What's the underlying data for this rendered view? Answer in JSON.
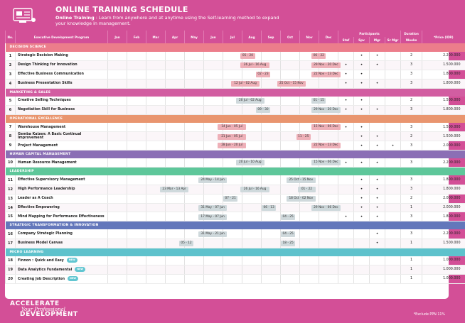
{
  "header": {
    "title": "ONLINE TRAINING  SCHEDULE",
    "subtitle_bold": "Online Training",
    "subtitle_text": " : Learn from anywhere and at anytime using the Self-learning method to expand your knowledge in management."
  },
  "columns": {
    "no": "No.",
    "program": "Executive Development Program",
    "months": [
      "Jan",
      "Feb",
      "Mar",
      "Apr",
      "May",
      "Jun",
      "Jul",
      "Aug",
      "Sep",
      "Oct",
      "Nov",
      "Dec"
    ],
    "participants": "Participants",
    "participant_types": [
      "Staf",
      "Spv",
      "Mgr",
      "Sr Mgr"
    ],
    "duration": "Duration",
    "weeks": "Weeks",
    "price": "*Price (IDR)"
  },
  "colors": {
    "accent": "#d34f97",
    "bar_pink": "#eeb0b8",
    "bar_gray": "#cfd9dc"
  },
  "sections": [
    {
      "title": "DECISION SCIENCE",
      "color": "#ec7d8b",
      "rows": [
        {
          "no": "1",
          "program": "Strategic Decision Making",
          "bars": [
            {
              "m": 6.9,
              "w": 0.75,
              "c": "pink",
              "t": "05 - 20"
            },
            {
              "m": 10.6,
              "w": 0.75,
              "c": "pink",
              "t": "06 - 22"
            }
          ],
          "p": [
            "",
            "•",
            "•",
            ""
          ],
          "weeks": "2",
          "price": "2.200.000"
        },
        {
          "no": "2",
          "program": "Design Thinking for Innovation",
          "bars": [
            {
              "m": 6.9,
              "w": 1.5,
              "c": "pink",
              "t": "26 Jul - 16 Aug"
            },
            {
              "m": 10.6,
              "w": 1.5,
              "c": "pink",
              "t": "29 Nov - 20 Dec"
            }
          ],
          "p": [
            "•",
            "•",
            "•",
            ""
          ],
          "weeks": "3",
          "price": "1.500.000"
        },
        {
          "no": "3",
          "program": "Effective Business Communication",
          "bars": [
            {
              "m": 7.7,
              "w": 0.75,
              "c": "pink",
              "t": "02 - 23"
            },
            {
              "m": 10.6,
              "w": 1.5,
              "c": "pink",
              "t": "22 Nov - 13 Dec"
            }
          ],
          "p": [
            "•",
            "•",
            "",
            ""
          ],
          "weeks": "3",
          "price": "1.800.000"
        },
        {
          "no": "4",
          "program": "Business Presentation Skills",
          "bars": [
            {
              "m": 6.4,
              "w": 1.5,
              "c": "pink",
              "t": "12 Jul - 02 Aug"
            },
            {
              "m": 8.8,
              "w": 1.5,
              "c": "pink",
              "t": "25 Oct - 15 Nov"
            }
          ],
          "p": [
            "•",
            "•",
            "•",
            ""
          ],
          "weeks": "3",
          "price": "1.800.000"
        }
      ]
    },
    {
      "title": "MARKETING & SALES",
      "color": "#d25da1",
      "rows": [
        {
          "no": "5",
          "program": "Creative Selling Techniques",
          "bars": [
            {
              "m": 6.65,
              "w": 1.5,
              "c": "gray",
              "t": "20 Jul - 02 Aug"
            },
            {
              "m": 10.6,
              "w": 0.75,
              "c": "gray",
              "t": "01 - 15"
            }
          ],
          "p": [
            "•",
            "•",
            "",
            ""
          ],
          "weeks": "2",
          "price": "1.500.000"
        },
        {
          "no": "6",
          "program": "Negotiation Skill for Business",
          "bars": [
            {
              "m": 7.7,
              "w": 0.75,
              "c": "gray",
              "t": "09 - 30"
            },
            {
              "m": 10.6,
              "w": 1.5,
              "c": "gray",
              "t": "29 Nov - 20 Dec"
            }
          ],
          "p": [
            "•",
            "•",
            "•",
            ""
          ],
          "weeks": "3",
          "price": "1.800.000"
        }
      ]
    },
    {
      "title": "OPERATIONAL EXCELLENCE",
      "color": "#e9956f",
      "rows": [
        {
          "no": "7",
          "program": "Warehouse Management",
          "bars": [
            {
              "m": 5.7,
              "w": 1.5,
              "c": "pink",
              "t": "14 Jun - 05 Jul"
            },
            {
              "m": 10.6,
              "w": 1.5,
              "c": "pink",
              "t": "15 Nov - 06 Dec"
            }
          ],
          "p": [
            "•",
            "•",
            "",
            ""
          ],
          "weeks": "3",
          "price": "1.500.000"
        },
        {
          "no": "8",
          "program": "Gemba Kaizen: A Basic Continual Improvement",
          "bars": [
            {
              "m": 5.7,
              "w": 1.5,
              "c": "pink",
              "t": "21 Jun - 05 Jul"
            },
            {
              "m": 9.8,
              "w": 0.75,
              "c": "pink",
              "t": "11 - 25"
            }
          ],
          "p": [
            "",
            "•",
            "•",
            ""
          ],
          "weeks": "2",
          "price": "1.500.000"
        },
        {
          "no": "9",
          "program": "Project Management",
          "bars": [
            {
              "m": 5.7,
              "w": 1.5,
              "c": "pink",
              "t": "28 Jun - 20 Jul"
            },
            {
              "m": 10.6,
              "w": 1.5,
              "c": "pink",
              "t": "22 Nov - 13 Dec"
            }
          ],
          "p": [
            "",
            "•",
            "•",
            "•"
          ],
          "weeks": "3",
          "price": "2.000.000"
        }
      ]
    },
    {
      "title": "HUMAN CAPITAL MANAGEMENT",
      "color": "#8b6fb5",
      "rows": [
        {
          "no": "10",
          "program": "Human Resource Management",
          "bars": [
            {
              "m": 6.65,
              "w": 1.5,
              "c": "gray",
              "t": "20 Jul - 10 Aug"
            },
            {
              "m": 10.6,
              "w": 1.5,
              "c": "gray",
              "t": "15 Nov - 06 Dec"
            }
          ],
          "p": [
            "•",
            "•",
            "•",
            ""
          ],
          "weeks": "3",
          "price": "2.200.000"
        }
      ]
    },
    {
      "title": "LEADERSHIP",
      "color": "#5ec79a",
      "rows": [
        {
          "no": "11",
          "program": "Effective Supervisory Management",
          "bars": [
            {
              "m": 4.7,
              "w": 1.5,
              "c": "gray",
              "t": "24 May - 14 Jun"
            },
            {
              "m": 9.3,
              "w": 1.5,
              "c": "gray",
              "t": "25 Oct - 15 Nov"
            }
          ],
          "p": [
            "",
            "•",
            "•",
            ""
          ],
          "weeks": "3",
          "price": "1.800.000"
        },
        {
          "no": "12",
          "program": "High Performance Leadership",
          "bars": [
            {
              "m": 2.7,
              "w": 1.5,
              "c": "gray",
              "t": "23 Mar - 13 Apr"
            },
            {
              "m": 6.9,
              "w": 1.5,
              "c": "gray",
              "t": "26 Jul - 16 Aug"
            },
            {
              "m": 9.9,
              "w": 0.9,
              "c": "gray",
              "t": "01 - 22"
            }
          ],
          "p": [
            "",
            "•",
            "•",
            ""
          ],
          "weeks": "3",
          "price": "1.800.000"
        },
        {
          "no": "13",
          "program": "Leader as A Coach",
          "bars": [
            {
              "m": 6.0,
              "w": 0.75,
              "c": "gray",
              "t": "07 - 21"
            },
            {
              "m": 9.3,
              "w": 1.5,
              "c": "gray",
              "t": "18 Oct - 02 Nov"
            }
          ],
          "p": [
            "",
            "•",
            "•",
            ""
          ],
          "weeks": "2",
          "price": "2.000.000"
        },
        {
          "no": "14",
          "program": "Effective Empowering",
          "bars": [
            {
              "m": 4.7,
              "w": 1.5,
              "c": "gray",
              "t": "31 May - 07 Jun"
            },
            {
              "m": 8.0,
              "w": 0.75,
              "c": "gray",
              "t": "06 - 13"
            },
            {
              "m": 10.6,
              "w": 1.5,
              "c": "gray",
              "t": "29 Nov - 06 Dec"
            }
          ],
          "p": [
            "",
            "•",
            "•",
            ""
          ],
          "weeks": "1",
          "price": "2.000.000"
        },
        {
          "no": "15",
          "program": "Mind Mapping for Performance Effectiveness",
          "bars": [
            {
              "m": 4.7,
              "w": 1.5,
              "c": "gray",
              "t": "17 May - 07 Jun"
            },
            {
              "m": 9.0,
              "w": 0.75,
              "c": "gray",
              "t": "04 - 25"
            }
          ],
          "p": [
            "•",
            "•",
            "•",
            ""
          ],
          "weeks": "3",
          "price": "1.800.000"
        }
      ]
    },
    {
      "title": "STRATEGIC TRANSFORMATION & INNOVATION",
      "color": "#6377bb",
      "rows": [
        {
          "no": "16",
          "program": "Company Strategic Planning",
          "bars": [
            {
              "m": 4.7,
              "w": 1.5,
              "c": "gray",
              "t": "31 May - 21 Jun"
            },
            {
              "m": 9.0,
              "w": 0.75,
              "c": "gray",
              "t": "04 - 25"
            }
          ],
          "p": [
            "",
            "",
            "•",
            ""
          ],
          "weeks": "3",
          "price": "2.200.000"
        },
        {
          "no": "17",
          "program": "Business Model Canvas",
          "bars": [
            {
              "m": 3.7,
              "w": 0.75,
              "c": "gray",
              "t": "05 - 12"
            },
            {
              "m": 9.0,
              "w": 0.75,
              "c": "gray",
              "t": "18 - 25"
            }
          ],
          "p": [
            "",
            "",
            "•",
            ""
          ],
          "weeks": "1",
          "price": "1.500.000"
        }
      ]
    },
    {
      "title": "MICRO LEARNING",
      "color": "#5ec2cc",
      "rows": [
        {
          "no": "18",
          "program": "Finnon : Quick and Easy",
          "badge": "NEW",
          "bars": [],
          "p": [
            "",
            "",
            "",
            ""
          ],
          "weeks": "1",
          "price": "1.000.000"
        },
        {
          "no": "19",
          "program": "Data Analytics Fundamental",
          "badge": "NEW",
          "bars": [],
          "p": [
            "",
            "",
            "",
            ""
          ],
          "weeks": "1",
          "price": "1.000.000"
        },
        {
          "no": "20",
          "program": "Creating Job Description",
          "badge": "NEW",
          "bars": [],
          "p": [
            "",
            "",
            "",
            ""
          ],
          "weeks": "1",
          "price": "1.000.000"
        }
      ]
    }
  ],
  "footer": {
    "brand_line1": "ACCELERATE",
    "brand_line2": "Your Professional",
    "brand_line3": "DEVELOPMENT",
    "note": "*Exclude PPN 11%"
  }
}
